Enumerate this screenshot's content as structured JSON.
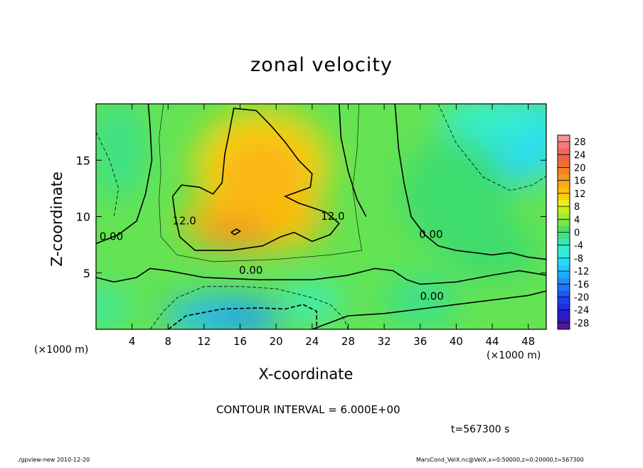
{
  "chart_data": {
    "type": "heatmap",
    "title": "zonal velocity",
    "xlabel": "X-coordinate",
    "ylabel": "Z-coordinate",
    "x_unit_label": "(×1000 m)",
    "x_ticks": [
      4,
      8,
      12,
      16,
      20,
      24,
      28,
      32,
      36,
      40,
      44,
      48
    ],
    "y_ticks": [
      5,
      10,
      15
    ],
    "xlim": [
      0,
      50
    ],
    "ylim": [
      0,
      20
    ],
    "colorbar_ticks": [
      28,
      24,
      20,
      16,
      12,
      8,
      4,
      0,
      -4,
      -8,
      -12,
      -16,
      -20,
      -24,
      -28
    ],
    "colorbar_range": [
      -30,
      30
    ],
    "contour_labels": [
      {
        "text": "12.0",
        "x": 9.8,
        "z": 9.6
      },
      {
        "text": "12.0",
        "x": 26.3,
        "z": 10.0
      },
      {
        "text": "0.00",
        "x": 1.7,
        "z": 8.2
      },
      {
        "text": "0.00",
        "x": 17.2,
        "z": 5.2
      },
      {
        "text": "0.00",
        "x": 37.2,
        "z": 8.4
      },
      {
        "text": "0.00",
        "x": 37.3,
        "z": 2.9
      }
    ],
    "field_features": [
      {
        "kind": "jet_maximum",
        "x": 15.5,
        "z": 8.6,
        "value": 18
      },
      {
        "kind": "upper_maximum",
        "x": 18.5,
        "z": 13.5,
        "value": 14
      },
      {
        "kind": "near_surface_minimum",
        "x": 15.0,
        "z": 1.0,
        "value": -14
      },
      {
        "kind": "upper_right_minimum",
        "x": 47.0,
        "z": 17.5,
        "value": -10
      }
    ]
  },
  "contour_interval_text": "CONTOUR INTERVAL = 6.000E+00",
  "time_text": "t=567300 s",
  "footer": {
    "left": "./gpview-new   2010-12-20",
    "right": "MarsCond_VelX.nc@VelX,x=0:50000,z=0:20000,t=567300"
  },
  "colors": {
    "background": "#ffffff",
    "axis": "#000000"
  }
}
